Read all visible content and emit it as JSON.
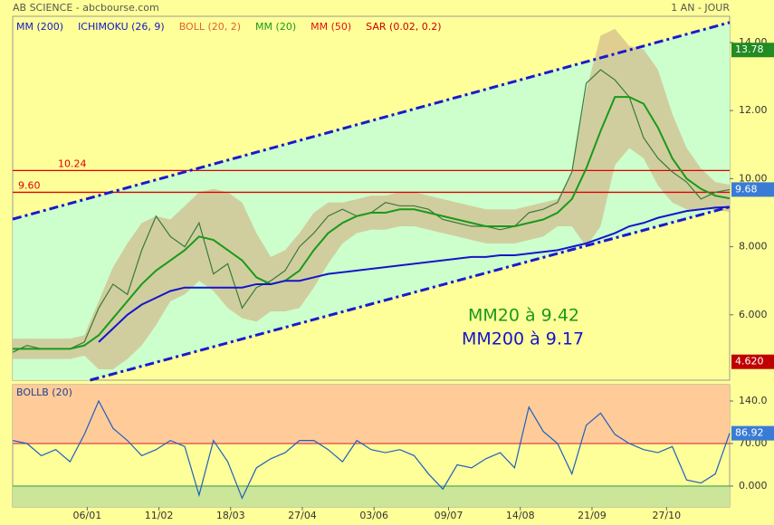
{
  "header": {
    "title": "AB SCIENCE - abcbourse.com",
    "period": "1 AN - JOUR"
  },
  "indicators": [
    {
      "name": "MM (200)",
      "color": "#1515c8"
    },
    {
      "name": "ICHIMOKU (26, 9)",
      "color": "#1515c8"
    },
    {
      "name": "BOLL (20, 2)",
      "color": "#e06030"
    },
    {
      "name": "MM (20)",
      "color": "#1a9a1a"
    },
    {
      "name": "MM (50)",
      "color": "#e01010"
    },
    {
      "name": "SAR (0.02, 0.2)",
      "color": "#cc0000"
    }
  ],
  "chart_data": [
    {
      "type": "line",
      "x": [
        0,
        5,
        10,
        15,
        20,
        25,
        30,
        35,
        40,
        45,
        50,
        55,
        60,
        65,
        70,
        75,
        80,
        85,
        90,
        95,
        100,
        105,
        110,
        115,
        120,
        125,
        130,
        135,
        140,
        145,
        150,
        155,
        160,
        165,
        170,
        175,
        180,
        185,
        190,
        195,
        200,
        205,
        210,
        215,
        220,
        225,
        230,
        235,
        240,
        245,
        250
      ],
      "xlim": [
        0,
        250
      ],
      "xticks": [
        {
          "value": 26,
          "label": "06/01"
        },
        {
          "value": 51,
          "label": "11/02"
        },
        {
          "value": 76,
          "label": "18/03"
        },
        {
          "value": 101,
          "label": "27/04"
        },
        {
          "value": 126,
          "label": "03/06"
        },
        {
          "value": 152,
          "label": "09/07"
        },
        {
          "value": 177,
          "label": "14/08"
        },
        {
          "value": 202,
          "label": "21/09"
        },
        {
          "value": 228,
          "label": "27/10"
        }
      ],
      "ylim": [
        4.08,
        14.77
      ],
      "yticks": [
        {
          "value": 14,
          "label": "14.00"
        },
        {
          "value": 12,
          "label": "12.00"
        },
        {
          "value": 10,
          "label": "10.00"
        },
        {
          "value": 8,
          "label": "8.000"
        },
        {
          "value": 6,
          "label": "6.000"
        }
      ],
      "bollinger": {
        "color": "#d2b98c",
        "upper": [
          5.3,
          5.3,
          5.3,
          5.3,
          5.3,
          5.4,
          6.4,
          7.4,
          8.1,
          8.7,
          8.9,
          8.8,
          9.2,
          9.6,
          9.7,
          9.6,
          9.3,
          8.4,
          7.7,
          7.9,
          8.4,
          9.0,
          9.3,
          9.3,
          9.4,
          9.5,
          9.5,
          9.6,
          9.6,
          9.5,
          9.4,
          9.3,
          9.2,
          9.1,
          9.1,
          9.1,
          9.2,
          9.3,
          9.4,
          10.2,
          12.6,
          14.2,
          14.4,
          13.9,
          13.8,
          13.2,
          11.9,
          10.9,
          10.3,
          9.9,
          9.82
        ],
        "lower": [
          4.7,
          4.7,
          4.7,
          4.7,
          4.7,
          4.8,
          4.4,
          4.4,
          4.7,
          5.1,
          5.7,
          6.4,
          6.6,
          7.0,
          6.7,
          6.2,
          5.9,
          5.8,
          6.1,
          6.1,
          6.2,
          6.8,
          7.5,
          8.1,
          8.4,
          8.5,
          8.5,
          8.6,
          8.6,
          8.5,
          8.4,
          8.3,
          8.2,
          8.1,
          8.1,
          8.1,
          8.2,
          8.3,
          8.6,
          8.6,
          8.0,
          8.6,
          10.4,
          10.9,
          10.6,
          9.8,
          9.3,
          9.1,
          9.1,
          9.1,
          9.02
        ]
      },
      "series": [
        {
          "color": "#3a7a3a",
          "values": [
            4.9,
            5.1,
            5.0,
            5.0,
            5.0,
            5.2,
            6.2,
            6.9,
            6.6,
            7.9,
            8.9,
            8.3,
            8.0,
            8.7,
            7.2,
            7.5,
            6.2,
            6.8,
            7.0,
            7.3,
            8.0,
            8.4,
            8.9,
            9.1,
            8.9,
            9.0,
            9.3,
            9.2,
            9.2,
            9.1,
            8.8,
            8.7,
            8.6,
            8.6,
            8.5,
            8.6,
            9.0,
            9.1,
            9.3,
            10.2,
            12.8,
            13.2,
            12.9,
            12.4,
            11.2,
            10.6,
            10.2,
            9.9,
            9.4,
            9.6,
            9.68
          ]
        },
        {
          "name": "MM (20)",
          "color": "#1a9a1a",
          "values": [
            5.0,
            5.0,
            5.0,
            5.0,
            5.0,
            5.1,
            5.4,
            5.9,
            6.4,
            6.9,
            7.3,
            7.6,
            7.9,
            8.3,
            8.2,
            7.9,
            7.6,
            7.1,
            6.9,
            7.0,
            7.3,
            7.9,
            8.4,
            8.7,
            8.9,
            9.0,
            9.0,
            9.1,
            9.1,
            9.0,
            8.9,
            8.8,
            8.7,
            8.6,
            8.6,
            8.6,
            8.7,
            8.8,
            9.0,
            9.4,
            10.3,
            11.4,
            12.4,
            12.4,
            12.2,
            11.5,
            10.6,
            10.0,
            9.7,
            9.5,
            9.42
          ]
        },
        {
          "name": "MM (200)",
          "color": "#1515c8",
          "values": [
            null,
            null,
            null,
            null,
            null,
            null,
            5.2,
            5.6,
            6.0,
            6.3,
            6.5,
            6.7,
            6.8,
            6.8,
            6.8,
            6.8,
            6.8,
            6.9,
            6.9,
            7.0,
            7.0,
            7.1,
            7.2,
            7.25,
            7.3,
            7.35,
            7.4,
            7.45,
            7.5,
            7.55,
            7.6,
            7.65,
            7.7,
            7.7,
            7.75,
            7.75,
            7.8,
            7.85,
            7.9,
            8.0,
            8.1,
            8.25,
            8.4,
            8.6,
            8.7,
            8.85,
            8.95,
            9.05,
            9.1,
            9.15,
            9.17
          ]
        }
      ],
      "channel": {
        "color": "#1a1acc",
        "fill": "#ccffcc",
        "upper": {
          "x": [
            0,
            250
          ],
          "values": [
            8.81,
            14.59
          ]
        },
        "lower": {
          "x": [
            27,
            250
          ],
          "values": [
            4.08,
            9.17
          ]
        }
      },
      "levels": [
        {
          "value": 10.24,
          "label": "10.24",
          "color": "#dd0000"
        },
        {
          "value": 9.6,
          "label": "9.60",
          "color": "#dd0000"
        }
      ],
      "badges": [
        {
          "value": 13.78,
          "label": "13.78",
          "color": "#228b22"
        },
        {
          "value": 9.68,
          "label": "9.68",
          "color": "#3a7bd5"
        },
        {
          "value": 4.62,
          "label": "4.620",
          "color": "#c00000"
        }
      ],
      "annotations": [
        {
          "text": "MM20 à 9.42",
          "color": "#1a9a1a"
        },
        {
          "text": "MM200 à 9.17",
          "color": "#1515c8"
        }
      ]
    },
    {
      "type": "line",
      "title": "BOLLB (20)",
      "ylim": [
        -34.3,
        166.8
      ],
      "yticks": [
        {
          "value": 140,
          "label": "140.0"
        },
        {
          "value": 70,
          "label": "70.00"
        },
        {
          "value": 0,
          "label": "0.000"
        }
      ],
      "zones": [
        {
          "from": 70,
          "color": "#ffcc99"
        },
        {
          "to": 0,
          "color": "#cce699"
        }
      ],
      "levels": [
        {
          "value": 70,
          "color": "#dd4444"
        },
        {
          "value": 0,
          "color": "#55aa55"
        }
      ],
      "series": [
        {
          "color": "#1f5fbf",
          "values": [
            75,
            70,
            50,
            60,
            40,
            85,
            140,
            95,
            75,
            50,
            60,
            75,
            65,
            -15,
            75,
            40,
            -20,
            30,
            45,
            55,
            75,
            75,
            60,
            40,
            75,
            60,
            55,
            60,
            50,
            20,
            -5,
            35,
            30,
            45,
            55,
            30,
            130,
            90,
            70,
            20,
            100,
            120,
            85,
            70,
            60,
            55,
            65,
            10,
            5,
            20,
            86.92
          ]
        }
      ],
      "badges": [
        {
          "value": 86.92,
          "label": "86.92",
          "color": "#3a7bd5"
        }
      ]
    }
  ]
}
